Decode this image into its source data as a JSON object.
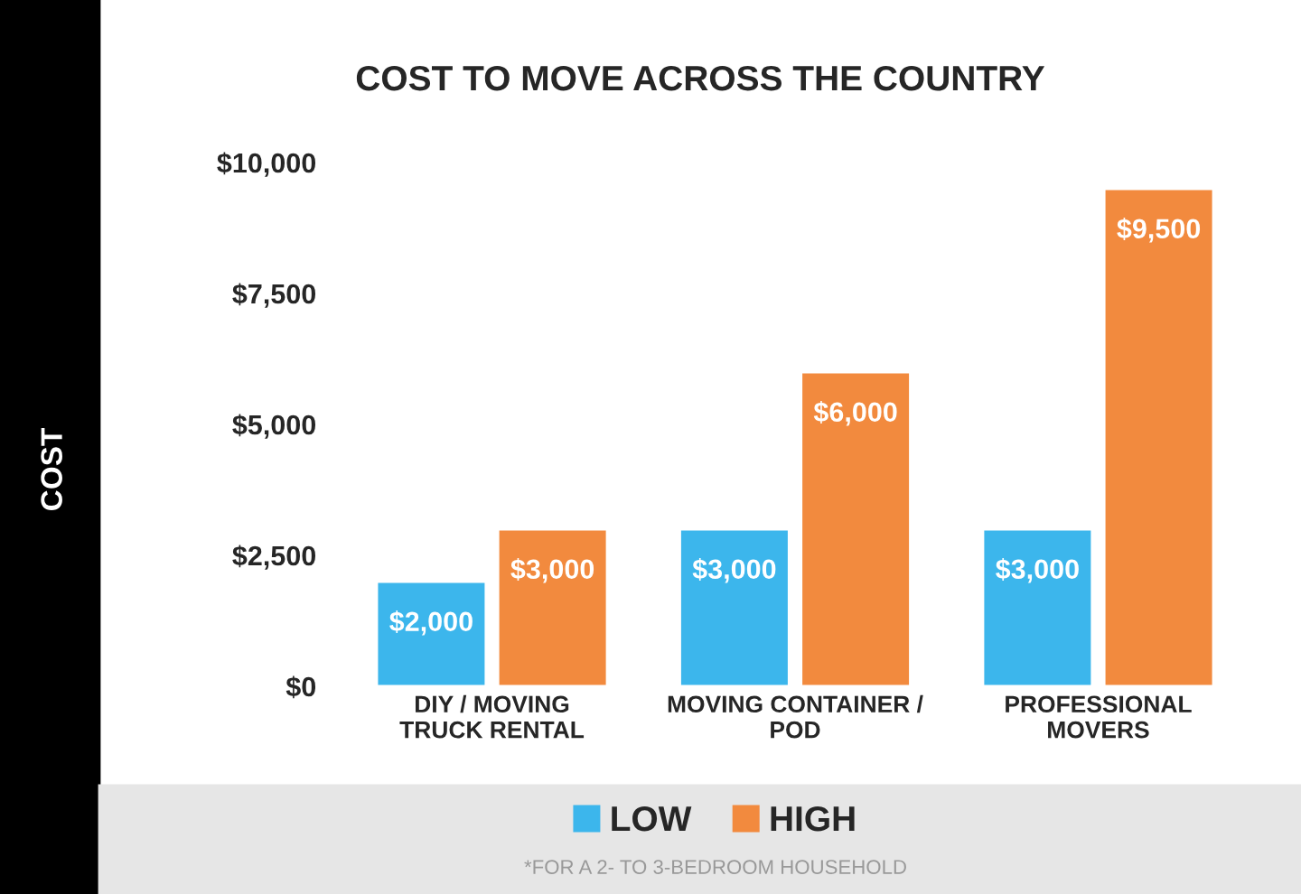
{
  "chart_data": {
    "type": "bar",
    "title": "COST TO MOVE ACROSS THE COUNTRY",
    "categories": [
      "DIY / MOVING\nTRUCK RENTAL",
      "MOVING CONTAINER /\nPOD",
      "PROFESSIONAL\nMOVERS"
    ],
    "series": [
      {
        "name": "LOW",
        "color": "#3cb6ec",
        "values": [
          2000,
          3000,
          3000
        ],
        "value_labels": [
          "$2,000",
          "$3,000",
          "$3,000"
        ]
      },
      {
        "name": "HIGH",
        "color": "#f28a3e",
        "values": [
          3000,
          6000,
          9500
        ],
        "value_labels": [
          "$3,000",
          "$6,000",
          "$9,500"
        ]
      }
    ],
    "ylim": [
      0,
      10000
    ],
    "yticks": [
      {
        "value": 0,
        "label": "$0"
      },
      {
        "value": 2500,
        "label": "$2,500"
      },
      {
        "value": 5000,
        "label": "$5,000"
      },
      {
        "value": 7500,
        "label": "$7,500"
      },
      {
        "value": 10000,
        "label": "$10,000"
      }
    ],
    "grid": false,
    "legend": "bottom",
    "annotations": [
      "COST",
      "*FOR A 2- TO 3-BEDROOM HOUSEHOLD"
    ]
  }
}
